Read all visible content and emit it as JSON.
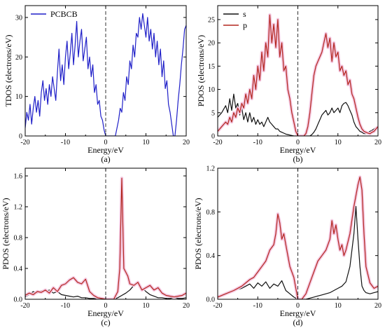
{
  "colors": {
    "tdos": "#1f1fc8",
    "s": "#111111",
    "p": "#b3261e",
    "p_halo": "#f4c9e2"
  },
  "chart_data": [
    {
      "type": "line",
      "panel_label": "(a)",
      "xlabel": "Energy/eV",
      "ylabel": "TDOS (electrons/eV)",
      "xlim": [
        -20,
        20
      ],
      "ylim": [
        0,
        33
      ],
      "xticks": [
        -20,
        -10,
        0,
        10,
        20
      ],
      "yticks": [
        0,
        10,
        20,
        30
      ],
      "legend": "top-left",
      "fermi_line_x": 0,
      "series": [
        {
          "name": "PCBCB",
          "color": "#1f1fc8",
          "x": [
            -20,
            -19.6,
            -19.2,
            -18.8,
            -18.4,
            -18,
            -17.6,
            -17.2,
            -16.8,
            -16.4,
            -16,
            -15.6,
            -15.2,
            -14.8,
            -14.4,
            -14,
            -13.6,
            -13.2,
            -12.8,
            -12.4,
            -12,
            -11.6,
            -11.2,
            -10.8,
            -10.4,
            -10,
            -9.6,
            -9.2,
            -8.8,
            -8.4,
            -8,
            -7.6,
            -7.2,
            -6.8,
            -6.4,
            -6,
            -5.6,
            -5.2,
            -4.8,
            -4.4,
            -4,
            -3.6,
            -3.2,
            -2.8,
            -2.4,
            -2,
            -1.6,
            -1.2,
            -0.8,
            -0.4,
            0,
            0.4,
            0.8,
            1.2,
            1.6,
            2,
            2.4,
            2.8,
            3.2,
            3.6,
            4,
            4.4,
            4.8,
            5.2,
            5.6,
            6,
            6.4,
            6.8,
            7.2,
            7.6,
            8,
            8.4,
            8.8,
            9.2,
            9.6,
            10,
            10.4,
            10.8,
            11.2,
            11.6,
            12,
            12.4,
            12.8,
            13.2,
            13.6,
            14,
            14.4,
            14.8,
            15.2,
            15.6,
            16,
            16.4,
            16.8,
            17.2,
            17.6,
            18,
            18.4,
            18.8,
            19.2,
            19.6,
            20
          ],
          "y": [
            2,
            6,
            4,
            8,
            3,
            7,
            10,
            6,
            9,
            5,
            11,
            14,
            9,
            12,
            8,
            13,
            10,
            15,
            12,
            9,
            16,
            22,
            14,
            18,
            13,
            20,
            24,
            17,
            21,
            26,
            18,
            23,
            29,
            20,
            24,
            27,
            19,
            22,
            25,
            17,
            20,
            15,
            18,
            11,
            13,
            8,
            9,
            5,
            4,
            1.5,
            0,
            0,
            0,
            0,
            0,
            0,
            0,
            2,
            4,
            7,
            6,
            11,
            9,
            15,
            13,
            19,
            17,
            23,
            20,
            26,
            25,
            30,
            27,
            31,
            28,
            25,
            30,
            24,
            27,
            22,
            26,
            20,
            24,
            18,
            22,
            15,
            19,
            12,
            14,
            8,
            6,
            3,
            0,
            0,
            4,
            9,
            13,
            18,
            22,
            27,
            28
          ]
        }
      ]
    },
    {
      "type": "line",
      "panel_label": "(b)",
      "xlabel": "Energy/eV",
      "ylabel": "PDOS (electrons/eV)",
      "xlim": [
        -20,
        20
      ],
      "ylim": [
        0,
        28
      ],
      "xticks": [
        -20,
        -10,
        0,
        10,
        20
      ],
      "yticks": [
        0,
        5,
        10,
        15,
        20,
        25
      ],
      "legend": "top-left",
      "fermi_line_x": 0,
      "series": [
        {
          "name": "s",
          "color": "#111111",
          "x": [
            -20,
            -19,
            -18,
            -17.5,
            -17,
            -16.5,
            -16,
            -15.5,
            -15,
            -14.5,
            -14,
            -13.5,
            -13,
            -12.5,
            -12,
            -11.5,
            -11,
            -10.5,
            -10,
            -9.5,
            -9,
            -8.5,
            -8,
            -7.5,
            -7,
            -6.5,
            -6,
            -5.5,
            -5,
            -4.5,
            -4,
            -3.5,
            -3,
            -2.5,
            -2,
            -1.5,
            -1,
            -0.5,
            0,
            0.5,
            1,
            1.5,
            2,
            2.5,
            3,
            3.5,
            4,
            4.5,
            5,
            5.5,
            6,
            6.5,
            7,
            7.5,
            8,
            8.5,
            9,
            9.5,
            10,
            10.5,
            11,
            11.5,
            12,
            12.5,
            13,
            13.5,
            14,
            14.5,
            15,
            15.5,
            16,
            16.5,
            17,
            17.5,
            18,
            18.5,
            19,
            19.5,
            20
          ],
          "y": [
            4,
            5,
            6.5,
            5,
            8,
            5.5,
            9,
            6,
            7,
            4.5,
            6,
            3.5,
            5,
            3,
            5,
            3,
            4,
            2.5,
            3.5,
            2.5,
            3,
            2,
            3,
            4,
            3,
            2.5,
            2,
            1.5,
            1.5,
            1,
            0.8,
            0.6,
            0.4,
            0.3,
            0.2,
            0.1,
            0,
            0,
            0,
            0,
            0,
            0,
            0,
            0,
            0,
            0.3,
            0.8,
            1.5,
            2.5,
            3.5,
            4.5,
            5,
            5.5,
            4.5,
            5,
            6,
            5,
            5.5,
            6,
            5,
            6.5,
            7,
            7.2,
            6.5,
            5.5,
            4.5,
            3,
            2,
            1.5,
            1,
            0.8,
            0.5,
            0.5,
            0.7,
            1,
            1.2,
            1.5,
            1.8,
            2
          ]
        },
        {
          "name": "p",
          "color": "#b3261e",
          "x": [
            -20,
            -19,
            -18,
            -17.5,
            -17,
            -16.5,
            -16,
            -15.5,
            -15,
            -14.5,
            -14,
            -13.5,
            -13,
            -12.5,
            -12,
            -11.5,
            -11,
            -10.5,
            -10,
            -9.5,
            -9,
            -8.5,
            -8,
            -7.5,
            -7,
            -6.5,
            -6,
            -5.5,
            -5,
            -4.5,
            -4,
            -3.5,
            -3,
            -2.5,
            -2,
            -1.5,
            -1,
            -0.5,
            0,
            0.5,
            1,
            1.5,
            2,
            2.5,
            3,
            3.5,
            4,
            4.5,
            5,
            5.5,
            6,
            6.5,
            7,
            7.5,
            8,
            8.5,
            9,
            9.5,
            10,
            10.5,
            11,
            11.5,
            12,
            12.5,
            13,
            13.5,
            14,
            14.5,
            15,
            15.5,
            16,
            16.5,
            17,
            17.5,
            18,
            18.5,
            19,
            19.5,
            20
          ],
          "y": [
            1,
            2,
            3,
            2.5,
            4,
            3,
            5,
            4,
            6,
            5,
            7,
            6,
            9,
            7,
            10,
            8,
            13,
            10,
            15,
            12,
            18,
            14,
            20,
            17,
            26,
            20,
            24,
            19,
            25,
            17,
            20,
            14,
            15,
            10,
            8,
            5,
            3,
            1,
            0,
            0,
            0,
            0,
            0.5,
            2,
            5,
            9,
            13,
            15,
            16,
            17,
            18,
            20,
            22,
            19,
            21,
            16,
            20,
            17,
            18,
            14,
            15,
            13,
            14,
            11,
            12,
            9,
            8,
            6,
            4,
            2.5,
            1.5,
            1,
            0.8,
            0.6,
            0.5,
            0.8,
            1,
            1.5,
            2
          ]
        }
      ]
    },
    {
      "type": "line",
      "panel_label": "(c)",
      "xlabel": "Energy/eV",
      "ylabel": "PDOS (electrons/eV)",
      "xlim": [
        -20,
        20
      ],
      "ylim": [
        0,
        1.7
      ],
      "xticks": [
        -20,
        -10,
        0,
        10,
        20
      ],
      "yticks": [
        0.0,
        0.4,
        0.8,
        1.2,
        1.6
      ],
      "fermi_line_x": 0,
      "series": [
        {
          "name": "s",
          "color": "#111111",
          "x": [
            -20,
            -19,
            -18,
            -17,
            -16,
            -15,
            -14,
            -13,
            -12,
            -11,
            -10,
            -9,
            -8,
            -7,
            -6,
            -5,
            -4,
            -3,
            -2,
            -1,
            0,
            1,
            2,
            3,
            4,
            5,
            6,
            7,
            8,
            9,
            10,
            11,
            12,
            13,
            14,
            15,
            16,
            17,
            18,
            19,
            20
          ],
          "y": [
            0.03,
            0.06,
            0.1,
            0.08,
            0.11,
            0.1,
            0.12,
            0.08,
            0.1,
            0.06,
            0.05,
            0.04,
            0.03,
            0.04,
            0.02,
            0.02,
            0.01,
            0.01,
            0,
            0,
            0,
            0,
            0,
            0.02,
            0.05,
            0.08,
            0.12,
            0.18,
            0.22,
            0.15,
            0.1,
            0.06,
            0.04,
            0.02,
            0.02,
            0.01,
            0.01,
            0.02,
            0.01,
            0.01,
            0.02
          ]
        },
        {
          "name": "p",
          "color": "#b3261e",
          "x": [
            -20,
            -19,
            -18,
            -17,
            -16,
            -15,
            -14,
            -13,
            -12,
            -11,
            -10,
            -9,
            -8,
            -7,
            -6,
            -5,
            -4,
            -3,
            -2,
            -1,
            0,
            1,
            2,
            3,
            3.5,
            4,
            4.5,
            5,
            5.5,
            6,
            7,
            8,
            9,
            10,
            11,
            12,
            13,
            14,
            15,
            16,
            17,
            18,
            19,
            20
          ],
          "y": [
            0.05,
            0.08,
            0.06,
            0.1,
            0.09,
            0.12,
            0.08,
            0.15,
            0.1,
            0.18,
            0.2,
            0.25,
            0.28,
            0.22,
            0.2,
            0.26,
            0.1,
            0.05,
            0.02,
            0.01,
            0,
            0,
            0,
            0.1,
            0.4,
            1.57,
            0.4,
            0.35,
            0.3,
            0.2,
            0.18,
            0.22,
            0.12,
            0.15,
            0.18,
            0.12,
            0.15,
            0.08,
            0.05,
            0.04,
            0.03,
            0.04,
            0.05,
            0.08
          ]
        }
      ]
    },
    {
      "type": "line",
      "panel_label": "(d)",
      "xlabel": "Energy/eV",
      "ylabel": "PDOS (electrons/eV)",
      "xlim": [
        -20,
        20
      ],
      "ylim": [
        0,
        1.2
      ],
      "xticks": [
        -20,
        -10,
        0,
        10,
        20
      ],
      "yticks": [
        0.0,
        0.4,
        0.8,
        1.2
      ],
      "fermi_line_x": 0,
      "series": [
        {
          "name": "s",
          "color": "#111111",
          "x": [
            -20,
            -18,
            -16,
            -14,
            -13,
            -12,
            -11,
            -10,
            -9,
            -8,
            -7,
            -6,
            -5,
            -4,
            -3,
            -2,
            -1,
            0,
            1,
            2,
            3,
            4,
            5,
            6,
            7,
            8,
            9,
            10,
            11,
            12,
            13,
            14,
            14.5,
            15,
            15.5,
            16,
            16.5,
            17,
            18,
            19,
            20
          ],
          "y": [
            0.02,
            0.05,
            0.08,
            0.1,
            0.12,
            0.14,
            0.1,
            0.15,
            0.12,
            0.16,
            0.1,
            0.14,
            0.12,
            0.17,
            0.08,
            0.05,
            0.02,
            0,
            0,
            0,
            0.01,
            0.02,
            0.03,
            0.04,
            0.05,
            0.06,
            0.08,
            0.1,
            0.12,
            0.16,
            0.3,
            0.6,
            0.85,
            0.55,
            0.3,
            0.12,
            0.08,
            0.06,
            0.05,
            0.06,
            0.07
          ]
        },
        {
          "name": "p",
          "color": "#b3261e",
          "x": [
            -20,
            -18,
            -16,
            -14,
            -13,
            -12,
            -11,
            -10,
            -9,
            -8,
            -7,
            -6,
            -5.5,
            -5,
            -4.5,
            -4,
            -3.5,
            -3,
            -2,
            -1,
            0,
            1,
            2,
            3,
            4,
            5,
            6,
            7,
            8,
            8.5,
            9,
            9.5,
            10,
            10.5,
            11,
            11.5,
            12,
            13,
            14,
            15,
            15.5,
            16,
            16.5,
            17,
            18,
            19,
            20
          ],
          "y": [
            0.02,
            0.05,
            0.08,
            0.12,
            0.15,
            0.18,
            0.2,
            0.25,
            0.3,
            0.35,
            0.45,
            0.5,
            0.6,
            0.78,
            0.7,
            0.55,
            0.6,
            0.5,
            0.3,
            0.2,
            0,
            0,
            0.05,
            0.15,
            0.25,
            0.35,
            0.4,
            0.45,
            0.55,
            0.72,
            0.6,
            0.68,
            0.55,
            0.45,
            0.5,
            0.4,
            0.45,
            0.6,
            0.85,
            1.05,
            1.12,
            1.0,
            0.6,
            0.3,
            0.15,
            0.1,
            0.12
          ]
        }
      ]
    }
  ]
}
